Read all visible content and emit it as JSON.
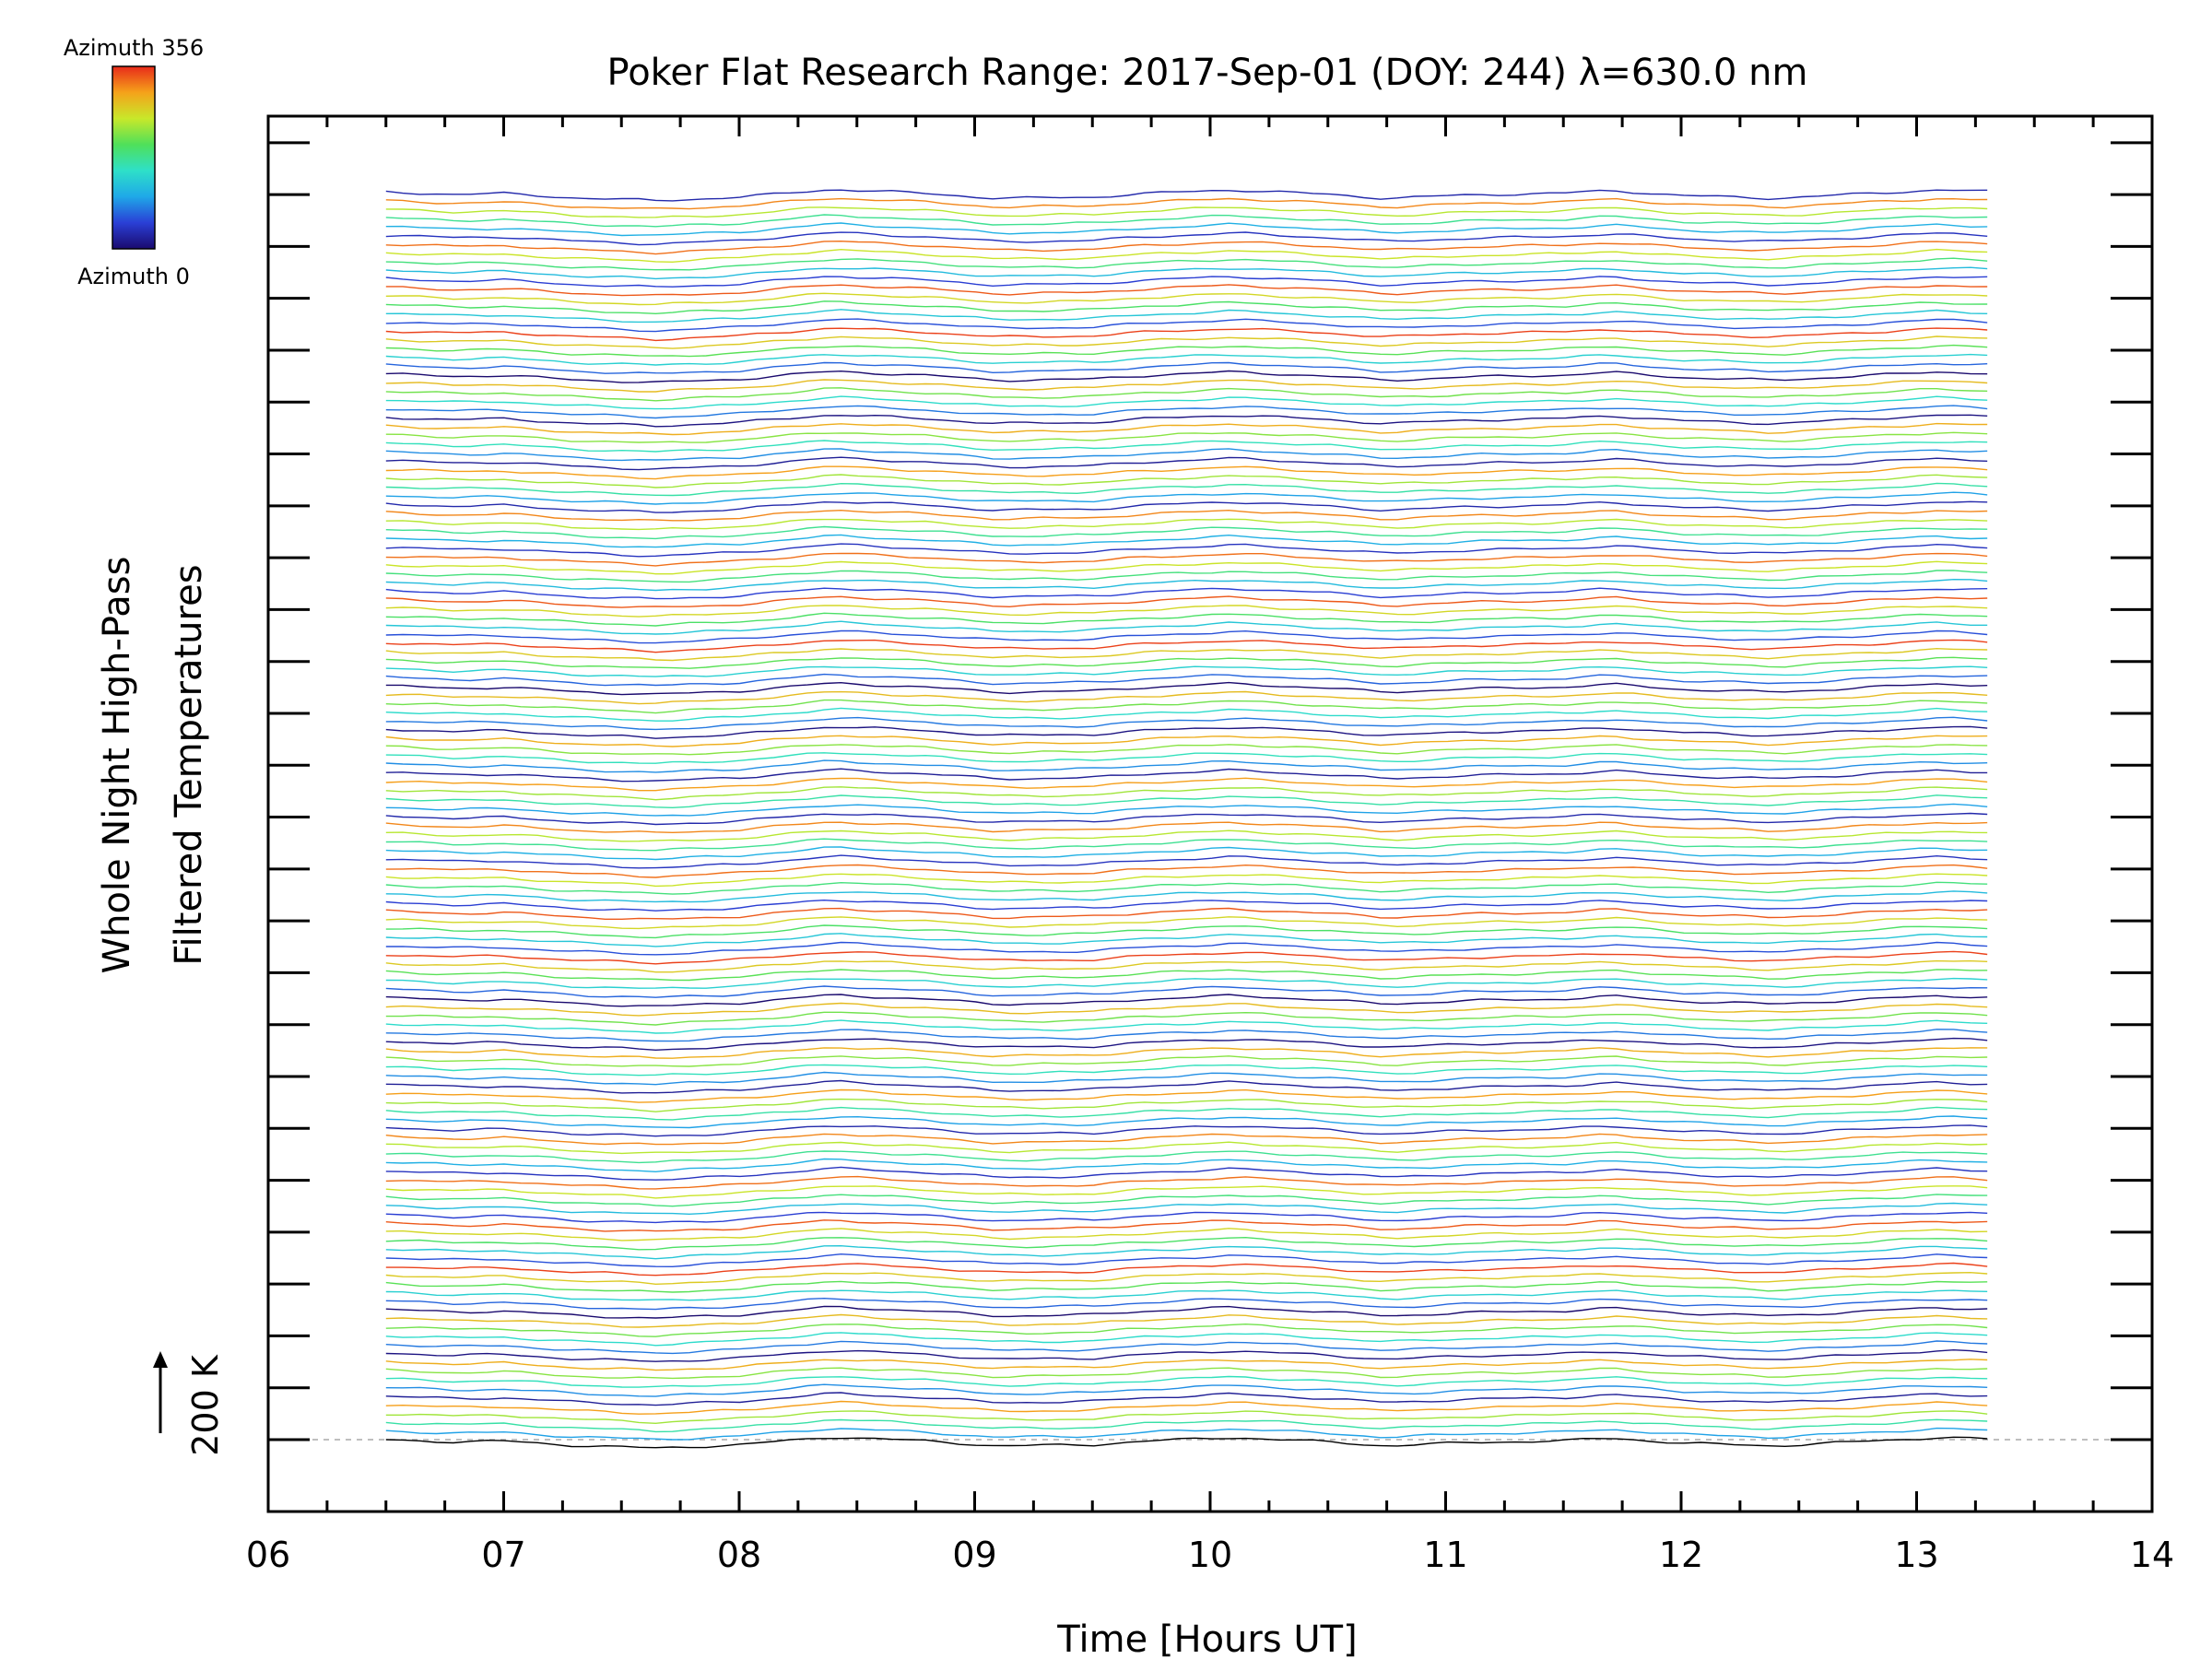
{
  "chart_data": {
    "type": "line",
    "title": "Poker Flat Research Range: 2017-Sep-01 (DOY: 244) λ=630.0 nm",
    "xlabel": "Time [Hours UT]",
    "ylabel_line1": "Whole Night High-Pass",
    "ylabel_line2": "Filtered Temperatures",
    "xlim": [
      6,
      14
    ],
    "x_tick_labels": [
      "06",
      "07",
      "08",
      "09",
      "10",
      "11",
      "12",
      "13",
      "14"
    ],
    "x_minor_step": 0.25,
    "data_x_range": [
      6.5,
      13.3
    ],
    "num_series": 145,
    "series_offset_k": 16.7,
    "scale_bar_label": "200 K",
    "scale_bar_k": 200,
    "colorbar": {
      "top_label": "Azimuth 356",
      "bottom_label": "Azimuth 0",
      "colormap": [
        "#1a0a6e",
        "#2a3fd6",
        "#1fa8e8",
        "#2ee0c8",
        "#4fe05a",
        "#c8e82a",
        "#f5a21a",
        "#e82a1a"
      ]
    },
    "legend_placement": "top-left",
    "baseline_color": "#aaaaaa",
    "common_signal_hours": [
      6.5,
      6.8,
      7.0,
      7.3,
      7.65,
      8.0,
      8.4,
      8.8,
      9.1,
      9.5,
      9.7,
      10.1,
      10.5,
      10.75,
      11.1,
      11.5,
      11.7,
      12.0,
      12.4,
      12.8,
      13.1,
      13.3
    ],
    "common_signal_k": [
      0,
      -8,
      -5,
      -20,
      -30,
      -18,
      10,
      -5,
      -22,
      -18,
      -6,
      8,
      -8,
      -22,
      -10,
      -4,
      6,
      -12,
      -22,
      -5,
      8,
      2
    ]
  }
}
